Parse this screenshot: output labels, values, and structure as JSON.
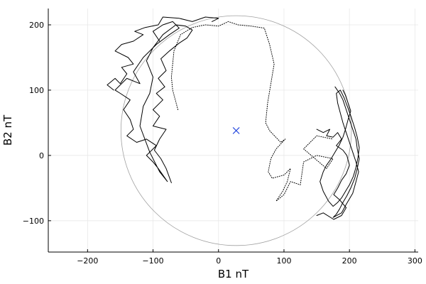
{
  "chart_data": {
    "type": "scatter",
    "xlabel": "B1 nT",
    "ylabel": "B2 nT",
    "xlim": [
      -260,
      305
    ],
    "ylim": [
      -148,
      225
    ],
    "x_ticks": [
      -200,
      -100,
      0,
      100,
      200,
      300
    ],
    "y_ticks": [
      -100,
      0,
      100,
      200
    ],
    "x_tick_labels": [
      "−200",
      "−100",
      "0",
      "100",
      "200",
      "300"
    ],
    "y_tick_labels": [
      "−100",
      "0",
      "100",
      "200"
    ],
    "grid": true,
    "legend": "none",
    "circle": {
      "center": [
        27,
        38
      ],
      "radius": 176,
      "color": "#a0a0a0"
    },
    "center_marker": {
      "x": 27,
      "y": 38,
      "symbol": "x",
      "color": "#2b4cdf"
    },
    "series": [
      {
        "style": "dotted",
        "color": "#000000",
        "points": [
          [
            -62,
            70
          ],
          [
            -70,
            100
          ],
          [
            -72,
            120
          ],
          [
            -68,
            160
          ],
          [
            -58,
            185
          ],
          [
            -40,
            196
          ],
          [
            -20,
            200
          ],
          [
            0,
            198
          ],
          [
            15,
            205
          ],
          [
            30,
            200
          ],
          [
            50,
            198
          ],
          [
            70,
            195
          ],
          [
            78,
            170
          ],
          [
            85,
            140
          ],
          [
            80,
            110
          ],
          [
            75,
            80
          ],
          [
            72,
            50
          ],
          [
            78,
            38
          ],
          [
            95,
            20
          ],
          [
            102,
            25
          ],
          [
            88,
            10
          ],
          [
            80,
            -5
          ],
          [
            76,
            -25
          ],
          [
            82,
            -35
          ],
          [
            100,
            -30
          ],
          [
            110,
            -20
          ],
          [
            105,
            -40
          ],
          [
            98,
            -55
          ],
          [
            88,
            -70
          ],
          [
            100,
            -60
          ],
          [
            110,
            -40
          ],
          [
            125,
            -45
          ],
          [
            130,
            -10
          ],
          [
            150,
            0
          ],
          [
            175,
            -5
          ],
          [
            165,
            -20
          ],
          [
            130,
            10
          ],
          [
            150,
            30
          ],
          [
            175,
            25
          ]
        ]
      },
      {
        "style": "solid",
        "color": "#000000",
        "points": [
          [
            -90,
            175
          ],
          [
            -100,
            190
          ],
          [
            -85,
            200
          ],
          [
            -70,
            205
          ],
          [
            -60,
            195
          ],
          [
            -75,
            185
          ],
          [
            -95,
            170
          ],
          [
            -115,
            150
          ],
          [
            -130,
            128
          ],
          [
            -120,
            110
          ],
          [
            -140,
            118
          ],
          [
            -158,
            100
          ],
          [
            -150,
            95
          ],
          [
            -135,
            85
          ],
          [
            -145,
            70
          ],
          [
            -135,
            55
          ],
          [
            -130,
            40
          ],
          [
            -140,
            30
          ],
          [
            -125,
            20
          ],
          [
            -110,
            25
          ],
          [
            -95,
            15
          ],
          [
            -110,
            0
          ],
          [
            -100,
            -10
          ],
          [
            -92,
            -20
          ],
          [
            -85,
            -30
          ],
          [
            -78,
            -40
          ],
          [
            -90,
            -25
          ],
          [
            -105,
            5
          ],
          [
            -120,
            45
          ],
          [
            -115,
            75
          ],
          [
            -105,
            95
          ],
          [
            -100,
            120
          ],
          [
            -110,
            145
          ],
          [
            -100,
            165
          ],
          [
            -85,
            185
          ],
          [
            -65,
            200
          ],
          [
            -50,
            198
          ],
          [
            -40,
            192
          ],
          [
            -48,
            180
          ],
          [
            -60,
            172
          ],
          [
            -75,
            160
          ],
          [
            -88,
            148
          ],
          [
            -80,
            130
          ],
          [
            -92,
            118
          ],
          [
            -82,
            105
          ],
          [
            -95,
            95
          ],
          [
            -85,
            85
          ],
          [
            -100,
            70
          ],
          [
            -90,
            60
          ],
          [
            -100,
            45
          ],
          [
            -80,
            40
          ],
          [
            -90,
            25
          ],
          [
            -98,
            8
          ],
          [
            -88,
            -5
          ],
          [
            -80,
            -20
          ],
          [
            -72,
            -42
          ]
        ]
      },
      {
        "style": "solid",
        "color": "#000000",
        "points": [
          [
            -160,
            100
          ],
          [
            -170,
            108
          ],
          [
            -158,
            118
          ],
          [
            -150,
            110
          ],
          [
            -140,
            125
          ],
          [
            -148,
            135
          ],
          [
            -130,
            140
          ],
          [
            -138,
            150
          ],
          [
            -158,
            160
          ],
          [
            -148,
            170
          ],
          [
            -130,
            175
          ],
          [
            -115,
            185
          ],
          [
            -128,
            190
          ],
          [
            -112,
            196
          ],
          [
            -92,
            200
          ],
          [
            -85,
            212
          ],
          [
            -60,
            210
          ],
          [
            -40,
            205
          ],
          [
            -20,
            212
          ],
          [
            0,
            210
          ],
          [
            -10,
            205
          ]
        ]
      },
      {
        "style": "solid",
        "color": "#000000",
        "points": [
          [
            178,
            105
          ],
          [
            185,
            95
          ],
          [
            190,
            85
          ],
          [
            195,
            70
          ],
          [
            200,
            55
          ],
          [
            205,
            40
          ],
          [
            210,
            25
          ],
          [
            212,
            10
          ],
          [
            215,
            -5
          ],
          [
            212,
            -20
          ],
          [
            208,
            -35
          ],
          [
            202,
            -50
          ],
          [
            196,
            -62
          ],
          [
            190,
            -72
          ],
          [
            185,
            -82
          ],
          [
            180,
            -90
          ],
          [
            175,
            -95
          ],
          [
            188,
            -88
          ],
          [
            195,
            -75
          ],
          [
            205,
            -58
          ],
          [
            210,
            -40
          ],
          [
            214,
            -25
          ],
          [
            210,
            -10
          ],
          [
            205,
            5
          ],
          [
            200,
            20
          ],
          [
            195,
            35
          ],
          [
            190,
            50
          ],
          [
            186,
            65
          ],
          [
            182,
            80
          ],
          [
            180,
            95
          ],
          [
            186,
            100
          ],
          [
            192,
            88
          ],
          [
            198,
            72
          ],
          [
            203,
            58
          ],
          [
            208,
            42
          ],
          [
            212,
            28
          ],
          [
            215,
            12
          ],
          [
            213,
            -3
          ],
          [
            210,
            -18
          ],
          [
            206,
            -32
          ],
          [
            200,
            -45
          ],
          [
            194,
            -55
          ],
          [
            188,
            -65
          ],
          [
            182,
            -72
          ],
          [
            175,
            -78
          ],
          [
            168,
            -70
          ],
          [
            160,
            -55
          ],
          [
            155,
            -40
          ],
          [
            160,
            -25
          ],
          [
            165,
            -15
          ],
          [
            172,
            -5
          ],
          [
            178,
            5
          ],
          [
            184,
            15
          ],
          [
            190,
            28
          ],
          [
            194,
            40
          ],
          [
            198,
            55
          ],
          [
            202,
            68
          ],
          [
            198,
            80
          ],
          [
            194,
            92
          ],
          [
            190,
            100
          ]
        ]
      },
      {
        "style": "solid",
        "color": "#000000",
        "points": [
          [
            150,
            40
          ],
          [
            160,
            35
          ],
          [
            170,
            40
          ],
          [
            165,
            30
          ],
          [
            175,
            28
          ],
          [
            182,
            35
          ],
          [
            188,
            25
          ],
          [
            180,
            15
          ],
          [
            190,
            8
          ],
          [
            196,
            0
          ],
          [
            200,
            -15
          ],
          [
            195,
            -28
          ],
          [
            188,
            -38
          ],
          [
            182,
            -50
          ],
          [
            176,
            -60
          ],
          [
            185,
            -68
          ],
          [
            195,
            -80
          ],
          [
            188,
            -92
          ],
          [
            176,
            -98
          ],
          [
            160,
            -88
          ],
          [
            150,
            -92
          ]
        ]
      }
    ]
  }
}
